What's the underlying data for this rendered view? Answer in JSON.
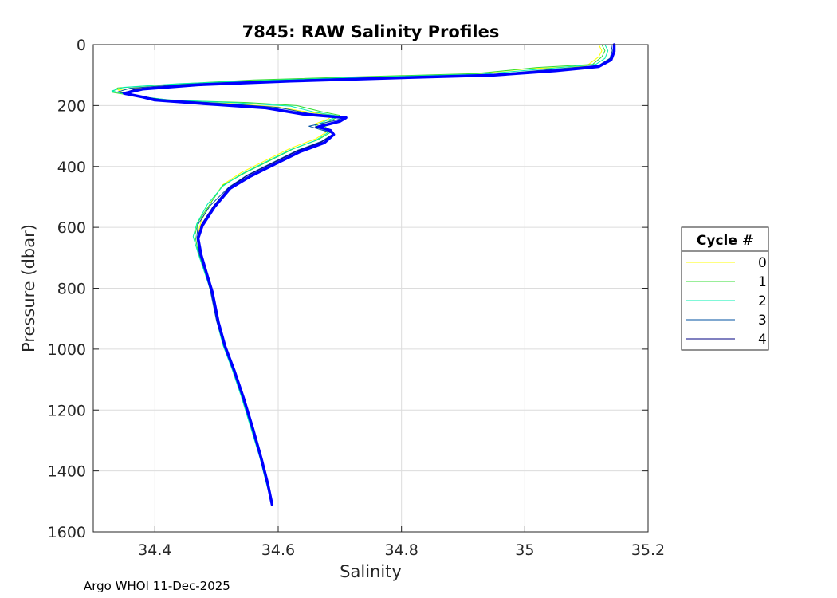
{
  "chart_data": {
    "type": "line",
    "title": "7845: RAW Salinity Profiles",
    "xlabel": "Salinity",
    "ylabel": "Pressure (dbar)",
    "xlim": [
      34.3,
      35.2
    ],
    "ylim": [
      0,
      1600
    ],
    "y_reversed": true,
    "grid": true,
    "x_ticks": [
      34.4,
      34.6,
      34.8,
      35.0,
      35.2
    ],
    "x_tick_labels": [
      "34.4",
      "34.6",
      "34.8",
      "35",
      "35.2"
    ],
    "y_ticks": [
      0,
      200,
      400,
      600,
      800,
      1000,
      1200,
      1400,
      1600
    ],
    "y_tick_labels": [
      "0",
      "200",
      "400",
      "600",
      "800",
      "1000",
      "1200",
      "1400",
      "1600"
    ],
    "legend": {
      "title": "Cycle #",
      "placement": "outside-right"
    },
    "series": [
      {
        "name": "0",
        "color": "#ffff00",
        "line_width": 1,
        "points": [
          [
            35.12,
            0
          ],
          [
            35.125,
            20
          ],
          [
            35.12,
            40
          ],
          [
            35.1,
            70
          ],
          [
            35.0,
            80
          ],
          [
            34.9,
            100
          ],
          [
            34.7,
            108
          ],
          [
            34.55,
            118
          ],
          [
            34.42,
            135
          ],
          [
            34.34,
            148
          ],
          [
            34.35,
            160
          ],
          [
            34.38,
            172
          ],
          [
            34.42,
            185
          ],
          [
            34.52,
            193
          ],
          [
            34.6,
            205
          ],
          [
            34.65,
            222
          ],
          [
            34.69,
            232
          ],
          [
            34.68,
            245
          ],
          [
            34.66,
            260
          ],
          [
            34.67,
            272
          ],
          [
            34.68,
            285
          ],
          [
            34.66,
            310
          ],
          [
            34.62,
            340
          ],
          [
            34.58,
            380
          ],
          [
            34.54,
            420
          ],
          [
            34.51,
            460
          ],
          [
            34.49,
            520
          ],
          [
            34.475,
            580
          ],
          [
            34.47,
            620
          ],
          [
            34.475,
            680
          ],
          [
            34.48,
            740
          ],
          [
            34.49,
            800
          ],
          [
            34.5,
            900
          ],
          [
            34.51,
            980
          ],
          [
            34.525,
            1060
          ],
          [
            34.54,
            1150
          ],
          [
            34.555,
            1250
          ],
          [
            34.57,
            1350
          ],
          [
            34.58,
            1430
          ],
          [
            34.59,
            1510
          ]
        ]
      },
      {
        "name": "1",
        "color": "#33dd33",
        "line_width": 1,
        "points": [
          [
            35.125,
            0
          ],
          [
            35.13,
            20
          ],
          [
            35.125,
            40
          ],
          [
            35.11,
            65
          ],
          [
            35.02,
            75
          ],
          [
            34.92,
            95
          ],
          [
            34.72,
            106
          ],
          [
            34.56,
            116
          ],
          [
            34.43,
            130
          ],
          [
            34.34,
            142
          ],
          [
            34.33,
            156
          ],
          [
            34.37,
            170
          ],
          [
            34.43,
            183
          ],
          [
            34.55,
            190
          ],
          [
            34.63,
            200
          ],
          [
            34.67,
            220
          ],
          [
            34.7,
            232
          ],
          [
            34.69,
            245
          ],
          [
            34.67,
            262
          ],
          [
            34.68,
            275
          ],
          [
            34.685,
            288
          ],
          [
            34.665,
            312
          ],
          [
            34.625,
            342
          ],
          [
            34.585,
            382
          ],
          [
            34.545,
            422
          ],
          [
            34.51,
            462
          ],
          [
            34.49,
            522
          ],
          [
            34.47,
            582
          ],
          [
            34.465,
            625
          ],
          [
            34.47,
            682
          ],
          [
            34.48,
            742
          ],
          [
            34.49,
            802
          ],
          [
            34.5,
            902
          ],
          [
            34.51,
            982
          ],
          [
            34.525,
            1062
          ],
          [
            34.54,
            1152
          ],
          [
            34.555,
            1252
          ],
          [
            34.57,
            1352
          ],
          [
            34.58,
            1432
          ],
          [
            34.59,
            1510
          ]
        ]
      },
      {
        "name": "2",
        "color": "#00f0b0",
        "line_width": 1,
        "points": [
          [
            35.13,
            0
          ],
          [
            35.135,
            20
          ],
          [
            35.13,
            45
          ],
          [
            35.115,
            65
          ],
          [
            35.04,
            78
          ],
          [
            34.93,
            97
          ],
          [
            34.74,
            107
          ],
          [
            34.58,
            117
          ],
          [
            34.44,
            128
          ],
          [
            34.35,
            140
          ],
          [
            34.33,
            152
          ],
          [
            34.36,
            166
          ],
          [
            34.42,
            181
          ],
          [
            34.53,
            191
          ],
          [
            34.62,
            202
          ],
          [
            34.66,
            222
          ],
          [
            34.7,
            235
          ],
          [
            34.68,
            248
          ],
          [
            34.66,
            265
          ],
          [
            34.675,
            278
          ],
          [
            34.68,
            290
          ],
          [
            34.66,
            315
          ],
          [
            34.62,
            345
          ],
          [
            34.58,
            385
          ],
          [
            34.54,
            425
          ],
          [
            34.51,
            465
          ],
          [
            34.485,
            525
          ],
          [
            34.468,
            588
          ],
          [
            34.462,
            630
          ],
          [
            34.47,
            685
          ],
          [
            34.48,
            745
          ],
          [
            34.49,
            805
          ],
          [
            34.5,
            905
          ],
          [
            34.51,
            985
          ],
          [
            34.525,
            1065
          ],
          [
            34.54,
            1155
          ],
          [
            34.555,
            1255
          ],
          [
            34.57,
            1355
          ],
          [
            34.58,
            1435
          ],
          [
            34.59,
            1510
          ]
        ]
      },
      {
        "name": "3",
        "color": "#0050a0",
        "line_width": 1,
        "points": [
          [
            35.14,
            0
          ],
          [
            35.142,
            20
          ],
          [
            35.138,
            45
          ],
          [
            35.12,
            68
          ],
          [
            35.05,
            80
          ],
          [
            34.95,
            98
          ],
          [
            34.76,
            108
          ],
          [
            34.59,
            118
          ],
          [
            34.45,
            130
          ],
          [
            34.36,
            143
          ],
          [
            34.34,
            155
          ],
          [
            34.37,
            168
          ],
          [
            34.41,
            180
          ],
          [
            34.5,
            192
          ],
          [
            34.6,
            206
          ],
          [
            34.65,
            226
          ],
          [
            34.71,
            238
          ],
          [
            34.69,
            250
          ],
          [
            34.65,
            268
          ],
          [
            34.67,
            280
          ],
          [
            34.69,
            292
          ],
          [
            34.67,
            318
          ],
          [
            34.63,
            348
          ],
          [
            34.59,
            388
          ],
          [
            34.55,
            428
          ],
          [
            34.52,
            468
          ],
          [
            34.49,
            528
          ],
          [
            34.47,
            590
          ],
          [
            34.468,
            632
          ],
          [
            34.472,
            688
          ],
          [
            34.482,
            748
          ],
          [
            34.49,
            808
          ],
          [
            34.5,
            908
          ],
          [
            34.512,
            988
          ],
          [
            34.527,
            1068
          ],
          [
            34.542,
            1158
          ],
          [
            34.557,
            1258
          ],
          [
            34.572,
            1358
          ],
          [
            34.582,
            1438
          ],
          [
            34.59,
            1510
          ]
        ]
      },
      {
        "name": "4",
        "color": "#000080",
        "line_width": 1,
        "points": [
          [
            35.145,
            0
          ],
          [
            35.145,
            20
          ],
          [
            35.14,
            45
          ],
          [
            35.12,
            70
          ],
          [
            35.05,
            83
          ],
          [
            34.95,
            100
          ],
          [
            34.77,
            110
          ],
          [
            34.6,
            120
          ],
          [
            34.46,
            132
          ],
          [
            34.37,
            145
          ],
          [
            34.35,
            158
          ],
          [
            34.38,
            170
          ],
          [
            34.41,
            182
          ],
          [
            34.49,
            194
          ],
          [
            34.59,
            208
          ],
          [
            34.64,
            228
          ],
          [
            34.71,
            240
          ],
          [
            34.7,
            252
          ],
          [
            34.66,
            270
          ],
          [
            34.68,
            282
          ],
          [
            34.69,
            295
          ],
          [
            34.67,
            320
          ],
          [
            34.63,
            350
          ],
          [
            34.59,
            390
          ],
          [
            34.55,
            430
          ],
          [
            34.52,
            470
          ],
          [
            34.495,
            530
          ],
          [
            34.475,
            592
          ],
          [
            34.47,
            635
          ],
          [
            34.474,
            690
          ],
          [
            34.483,
            750
          ],
          [
            34.492,
            810
          ],
          [
            34.502,
            910
          ],
          [
            34.513,
            990
          ],
          [
            34.528,
            1070
          ],
          [
            34.543,
            1160
          ],
          [
            34.558,
            1260
          ],
          [
            34.573,
            1360
          ],
          [
            34.583,
            1440
          ],
          [
            34.59,
            1510
          ]
        ]
      },
      {
        "name": "",
        "color": "#0000ff",
        "line_width": 3.5,
        "points": [
          [
            35.145,
            0
          ],
          [
            35.145,
            22
          ],
          [
            35.14,
            50
          ],
          [
            35.12,
            72
          ],
          [
            35.05,
            86
          ],
          [
            34.95,
            100
          ],
          [
            34.78,
            110
          ],
          [
            34.62,
            120
          ],
          [
            34.47,
            132
          ],
          [
            34.38,
            146
          ],
          [
            34.35,
            160
          ],
          [
            34.38,
            172
          ],
          [
            34.4,
            182
          ],
          [
            34.48,
            194
          ],
          [
            34.58,
            208
          ],
          [
            34.64,
            228
          ],
          [
            34.71,
            240
          ],
          [
            34.7,
            252
          ],
          [
            34.665,
            270
          ],
          [
            34.685,
            282
          ],
          [
            34.69,
            295
          ],
          [
            34.675,
            322
          ],
          [
            34.635,
            352
          ],
          [
            34.595,
            392
          ],
          [
            34.555,
            432
          ],
          [
            34.522,
            472
          ],
          [
            34.497,
            532
          ],
          [
            34.477,
            594
          ],
          [
            34.47,
            636
          ],
          [
            34.475,
            690
          ],
          [
            34.484,
            752
          ],
          [
            34.493,
            812
          ],
          [
            34.503,
            912
          ],
          [
            34.514,
            992
          ],
          [
            34.529,
            1072
          ],
          [
            34.544,
            1162
          ],
          [
            34.559,
            1262
          ],
          [
            34.573,
            1362
          ],
          [
            34.583,
            1442
          ],
          [
            34.59,
            1510
          ]
        ]
      }
    ]
  },
  "footer": "Argo WHOI 11-Dec-2025"
}
